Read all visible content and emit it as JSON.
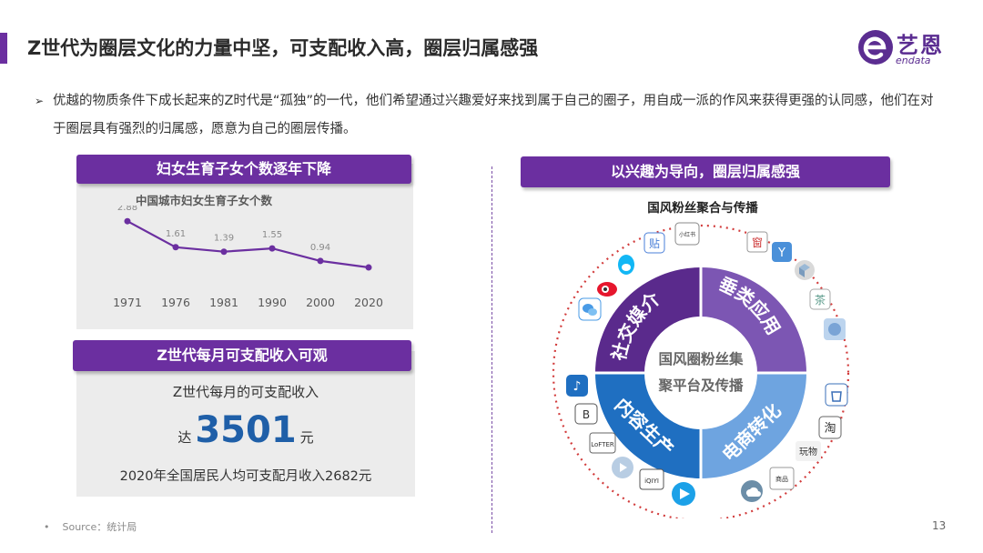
{
  "title": "Z世代为圈层文化的力量中坚，可支配收入高，圈层归属感强",
  "logo": {
    "cn": "艺恩",
    "en": "endata",
    "brand_color": "#5b2d91"
  },
  "bullet": {
    "marker": "➢",
    "text": "优越的物质条件下成长起来的Z时代是“孤独”的一代，他们希望通过兴趣爱好来找到属于自己的圈子，用自成一派的作风来获得更强的认同感，他们在对于圈层具有强烈的归属感，愿意为自己的圈层传播。"
  },
  "panel_birth": {
    "ribbon": "妇女生育子女个数逐年下降",
    "chart_title": "中国城市妇女生育子女个数"
  },
  "chart_data": {
    "type": "line",
    "title": "中国城市妇女生育子女个数",
    "categories": [
      "1971",
      "1976",
      "1981",
      "1990",
      "2000",
      "2020"
    ],
    "series": [
      {
        "values": [
          2.88,
          1.61,
          1.39,
          1.55,
          0.94,
          null
        ]
      }
    ],
    "data_labels": [
      "2.88",
      "1.61",
      "1.39",
      "1.55",
      "0.94",
      ""
    ],
    "ylim": [
      0,
      3.2
    ],
    "grid": false,
    "line_color": "#6b2fa0"
  },
  "panel_income": {
    "ribbon": "Z世代每月可支配收入可观",
    "subtitle": "Z世代每月的可支配收入",
    "prefix": "达",
    "amount": "3501",
    "unit": "元",
    "note": "2020年全国居民人均可支配月收入2682元"
  },
  "panel_circle": {
    "ribbon": "以兴趣为导向，圈层归属感强",
    "title": "国风粉丝聚合与传播",
    "center_lines": [
      "国风圈粉丝集",
      "聚平台及传播"
    ],
    "segments": [
      {
        "label": "社交媒介",
        "color": "#5a2a8c"
      },
      {
        "label": "垂类应用",
        "color": "#7c56b3"
      },
      {
        "label": "电商转化",
        "color": "#6ea4e0"
      },
      {
        "label": "内容生产",
        "color": "#1f6fc1"
      }
    ],
    "icons": [
      "weibo-icon",
      "qq-icon",
      "tieba-icon",
      "xiaohongshu-icon",
      "chuang-icon",
      "app-y-icon",
      "cube-icon",
      "tea-icon",
      "game-icon",
      "shopping-bag-icon",
      "taobao-icon",
      "wanwu-icon",
      "shop-icon",
      "cloud-music-icon",
      "tencent-video-icon",
      "iqiyi-icon",
      "youku-icon",
      "lofter-icon",
      "bilibili-icon",
      "douyin-icon",
      "wechat-icon"
    ],
    "icon_glyphs": {
      "tieba": "贴",
      "xiaohongshu": "小红书",
      "chuang": "窗",
      "app_y": "Y",
      "tea": "茶",
      "taobao": "淘",
      "wanwu": "玩物",
      "shop": "商品",
      "iqiyi": "iQIYI",
      "lofter": "LoFTER",
      "douyin": "♪",
      "bilibili": "B"
    }
  },
  "footer": {
    "source": "Source：统计局",
    "page": "13"
  }
}
